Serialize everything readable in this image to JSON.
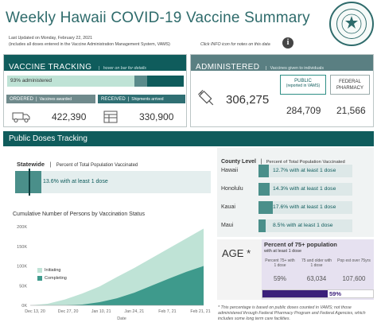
{
  "header": {
    "title": "Weekly Hawaii COVID-19 Vaccine Summary",
    "last_updated": "Last Updated on Monday, February 22, 2021",
    "includes_note": "(includes all doses entered in the Vaccine Administration Management System, VAMS)",
    "info_hint": "Click INFO icon for notes on this data",
    "info_icon_label": "i"
  },
  "tracking": {
    "title": "VACCINE TRACKING",
    "hint": "hover on bar for details",
    "percent_administered_label": "93% administered",
    "percent_administered": 0.93,
    "ordered_label": "ORDERED",
    "ordered_sub": "Vaccines awarded",
    "ordered_value": "422,390",
    "received_label": "RECEIVED",
    "received_sub": "Shipments arrived",
    "received_value": "330,900"
  },
  "administered": {
    "title": "ADMINISTERED",
    "sub": "Vaccines given to individuals",
    "total": "306,275",
    "public_label": "PUBLIC",
    "public_sub": "(reported in VAMS)",
    "public_value": "284,709",
    "federal_label": "FEDERAL PHARMACY",
    "federal_value": "21,566"
  },
  "public_doses": {
    "title": "Public Doses Tracking",
    "statewide_label": "Statewide",
    "statewide_sub": "Percent of Total Population Vaccinated",
    "statewide_value_label": "13.6% with at least 1 dose",
    "statewide_fraction": 0.136,
    "county_label": "County Level",
    "county_sub": "Percent of Total Population Vaccinated",
    "counties": [
      {
        "name": "Hawaii",
        "label": "12.7% with at least 1 dose",
        "fraction": 0.127
      },
      {
        "name": "Honolulu",
        "label": "14.3% with at least 1 dose",
        "fraction": 0.143
      },
      {
        "name": "Kauai",
        "label": "17.6% with at least 1 dose",
        "fraction": 0.176
      },
      {
        "name": "Maui",
        "label": "8.5% with at least 1 dose",
        "fraction": 0.085
      }
    ]
  },
  "cumulative": {
    "title": "Cumulative Number of Persons by Vaccination Status",
    "xlabel": "Date",
    "legend_initiating": "Initiating",
    "legend_completing": "Completing"
  },
  "age": {
    "title": "Percent of 75+ population",
    "subtitle": "with at least 1 dose",
    "big_label": "AGE",
    "star": "*",
    "col1_label": "Percent 75+ with 1 dose",
    "col1_value": "59%",
    "col2_label": "75 and older with 1 dose",
    "col2_value": "63,034",
    "col3_label": "Pop est over 75yrs",
    "col3_value": "107,600",
    "bar_label": "59%",
    "bar_fraction": 0.59
  },
  "footnote": "* This percentage is based on public doses counted in VAMS; not those administered through Federal Pharmacy Program and Federal Agencies, which includes some long term care facilities.",
  "colors": {
    "teal_dark": "#0f5c5c",
    "teal_mid": "#3e9a8c",
    "teal_light": "#bfe3d6",
    "purple": "#3b1f7a",
    "lavender": "#e6e1f0"
  },
  "chart_data": {
    "type": "area",
    "title": "Cumulative Number of Persons by Vaccination Status",
    "xlabel": "Date",
    "ylabel": "",
    "x_ticks": [
      "Dec 13, 20",
      "Dec 27, 20",
      "Jan 10, 21",
      "Jan 24, 21",
      "Feb 7, 21",
      "Feb 21, 21"
    ],
    "tick_labels_x": [
      "Dec 13, 20",
      "Dec 27, 20",
      "Jan 10, 21",
      "Jan 24, 21",
      "Feb 7, 21",
      "Feb 21, 21"
    ],
    "tick_labels_y": [
      "0K",
      "50K",
      "100K",
      "150K",
      "200K"
    ],
    "ylim": [
      0,
      200000
    ],
    "x": [
      "Dec 13, 20",
      "Dec 20, 20",
      "Dec 27, 20",
      "Jan 3, 21",
      "Jan 10, 21",
      "Jan 17, 21",
      "Jan 24, 21",
      "Jan 31, 21",
      "Feb 7, 21",
      "Feb 14, 21",
      "Feb 21, 21"
    ],
    "series": [
      {
        "name": "Initiating",
        "values": [
          0,
          4000,
          15000,
          30000,
          48000,
          72000,
          95000,
          120000,
          145000,
          170000,
          195000
        ]
      },
      {
        "name": "Completing",
        "values": [
          0,
          0,
          0,
          2000,
          8000,
          18000,
          32000,
          50000,
          68000,
          85000,
          100000
        ]
      }
    ],
    "legend": "left",
    "grid": false
  }
}
